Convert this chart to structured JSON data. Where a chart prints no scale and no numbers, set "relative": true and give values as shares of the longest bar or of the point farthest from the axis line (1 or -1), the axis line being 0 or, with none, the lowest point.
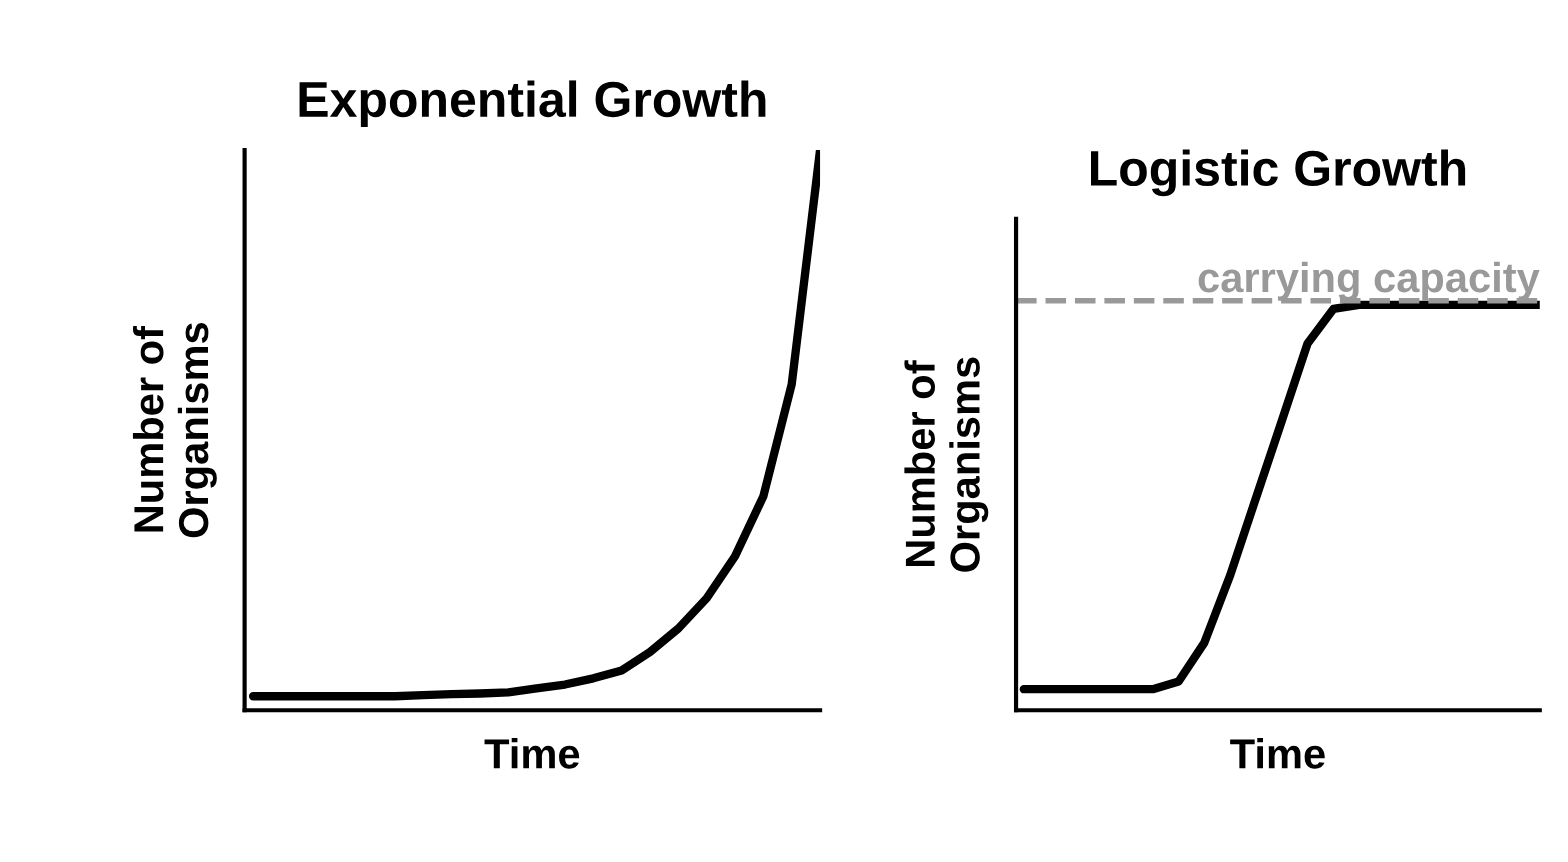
{
  "chart_data": [
    {
      "type": "line",
      "title": "Exponential Growth",
      "xlabel": "Time",
      "ylabel": "Number of\nOrganisms",
      "relative": true,
      "marker": "none",
      "line_style": "solid",
      "categories": [
        null,
        null,
        null,
        null,
        null,
        null,
        null,
        null,
        null,
        null,
        null,
        null,
        null,
        null,
        null,
        null,
        null,
        null,
        null,
        null,
        null
      ],
      "series": [
        {
          "color": "#000000",
          "values": [
            0.025,
            0.025,
            0.025,
            0.025,
            0.025,
            0.025,
            0.027,
            0.029,
            0.03,
            0.032,
            0.039,
            0.046,
            0.057,
            0.071,
            0.104,
            0.146,
            0.2,
            0.275,
            0.382,
            0.582,
            1
          ]
        }
      ]
    },
    {
      "type": "line",
      "title": "Logistic Growth",
      "xlabel": "Time",
      "ylabel": "Number of\nOrganisms",
      "relative": true,
      "marker": "none",
      "line_style": "solid",
      "categories": [
        null,
        null,
        null,
        null,
        null,
        null,
        null,
        null,
        null,
        null,
        null,
        null,
        null,
        null,
        null,
        null,
        null,
        null,
        null,
        null,
        null
      ],
      "series": [
        {
          "color": "#000000",
          "values": [
            0.052,
            0.052,
            0.052,
            0.052,
            0.052,
            0.052,
            0.071,
            0.167,
            0.333,
            0.524,
            0.714,
            0.905,
            0.99,
            1,
            1,
            1,
            1,
            1,
            1,
            1,
            1
          ]
        }
      ],
      "ref_lines": [
        {
          "axis": "y",
          "value": 1.01,
          "label": "carrying capacity",
          "color": "#999999",
          "line_style": "dashed"
        }
      ]
    }
  ]
}
